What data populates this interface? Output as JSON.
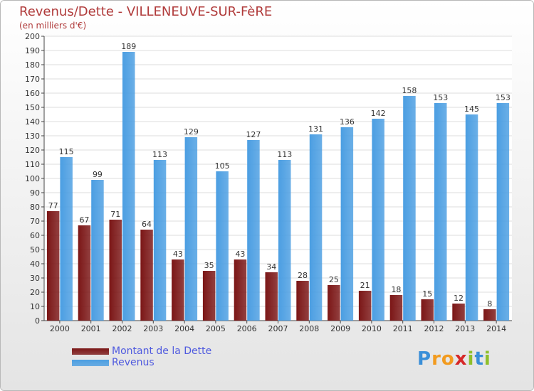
{
  "header": {
    "title": "Revenus/Dette - VILLENEUVE-SUR-FèRE",
    "subtitle": "(en milliers d'€)"
  },
  "chart_data": {
    "type": "bar",
    "categories": [
      "2000",
      "2001",
      "2002",
      "2003",
      "2004",
      "2005",
      "2006",
      "2007",
      "2008",
      "2009",
      "2010",
      "2011",
      "2012",
      "2013",
      "2014"
    ],
    "series": [
      {
        "name": "Montant de la Dette",
        "color": "#7b1616",
        "values": [
          77,
          67,
          71,
          64,
          43,
          35,
          43,
          34,
          28,
          25,
          21,
          18,
          15,
          12,
          8
        ]
      },
      {
        "name": "Revenus",
        "color": "#4b9ee2",
        "values": [
          115,
          99,
          189,
          113,
          129,
          105,
          127,
          113,
          131,
          136,
          142,
          158,
          153,
          145,
          153
        ]
      }
    ],
    "ylim": [
      0,
      200
    ],
    "ytick_step": 10,
    "grid": true,
    "legend_position": "bottom-left"
  },
  "legend": {
    "items": [
      {
        "label": "Montant de la Dette",
        "color": "#7b1616"
      },
      {
        "label": "Revenus",
        "color": "#4b9ee2"
      }
    ]
  },
  "logo": {
    "text": "Proxiti",
    "letters": [
      "P",
      "r",
      "o",
      "x",
      "i",
      "t",
      "i"
    ],
    "colors": [
      "#3a8fd8",
      "#f29b1f",
      "#f29b1f",
      "#d62828",
      "#8fbf2a",
      "#3a8fd8",
      "#8fbf2a"
    ]
  }
}
